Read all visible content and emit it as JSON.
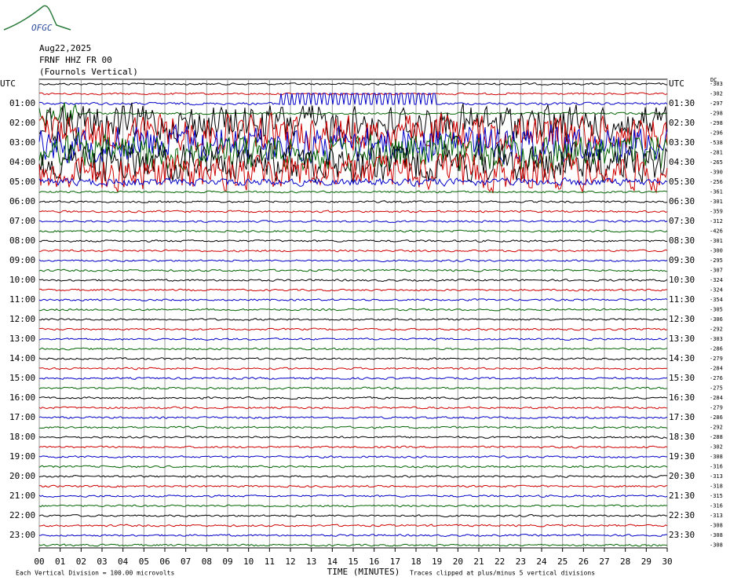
{
  "header": {
    "logo": "OFGC",
    "date": "Aug22,2025",
    "station": "FRNF HHZ FR 00",
    "component": "(Fournols Vertical)"
  },
  "chart_data": {
    "type": "helicorder",
    "left_labels": [
      "UTC",
      "01:00",
      "02:00",
      "03:00",
      "04:00",
      "05:00",
      "06:00",
      "07:00",
      "08:00",
      "09:00",
      "10:00",
      "11:00",
      "12:00",
      "13:00",
      "14:00",
      "15:00",
      "16:00",
      "17:00",
      "18:00",
      "19:00",
      "20:00",
      "21:00",
      "22:00",
      "23:00"
    ],
    "right_labels": [
      "UTC",
      "01:30",
      "02:30",
      "03:30",
      "04:30",
      "05:30",
      "06:30",
      "07:30",
      "08:30",
      "09:30",
      "10:30",
      "11:30",
      "12:30",
      "13:30",
      "14:30",
      "15:30",
      "16:30",
      "17:30",
      "18:30",
      "19:30",
      "20:30",
      "21:30",
      "22:30",
      "23:30"
    ],
    "dc_label": "DC",
    "dc_offsets": [
      -303,
      -302,
      -297,
      -298,
      -298,
      -296,
      -538,
      -281,
      -265,
      -390,
      -256,
      -361,
      -301,
      -359,
      -312,
      -426,
      -301,
      -300,
      -295,
      -307,
      -324,
      -324,
      -354,
      -305,
      -306,
      -292,
      -303,
      -286,
      -279,
      -284,
      -276,
      -275,
      -284,
      -279,
      -286,
      -292,
      -288,
      -302,
      -308,
      -316,
      -313,
      -318,
      -315,
      -316,
      -313,
      -308,
      -308,
      -308
    ],
    "colors": [
      "#000000",
      "#d00000",
      "#0000c8",
      "#006400"
    ],
    "xlim": [
      0,
      30
    ],
    "xticks": [
      {
        "value": 0,
        "label": "00"
      },
      {
        "value": 1,
        "label": "01"
      },
      {
        "value": 2,
        "label": "02"
      },
      {
        "value": 3,
        "label": "03"
      },
      {
        "value": 4,
        "label": "04"
      },
      {
        "value": 5,
        "label": "05"
      },
      {
        "value": 6,
        "label": "06"
      },
      {
        "value": 7,
        "label": "07"
      },
      {
        "value": 8,
        "label": "08"
      },
      {
        "value": 9,
        "label": "09"
      },
      10,
      11,
      12,
      13,
      14,
      15,
      16,
      17,
      18,
      19,
      20,
      21,
      22,
      23,
      24,
      25,
      26,
      27,
      28,
      29,
      30
    ],
    "xlabel": "TIME (MINUTES)"
  },
  "footer": {
    "scale": "Each Vertical Division =  100.00 microvolts",
    "clip": "Traces clipped at plus/minus 5 vertical divisions"
  }
}
